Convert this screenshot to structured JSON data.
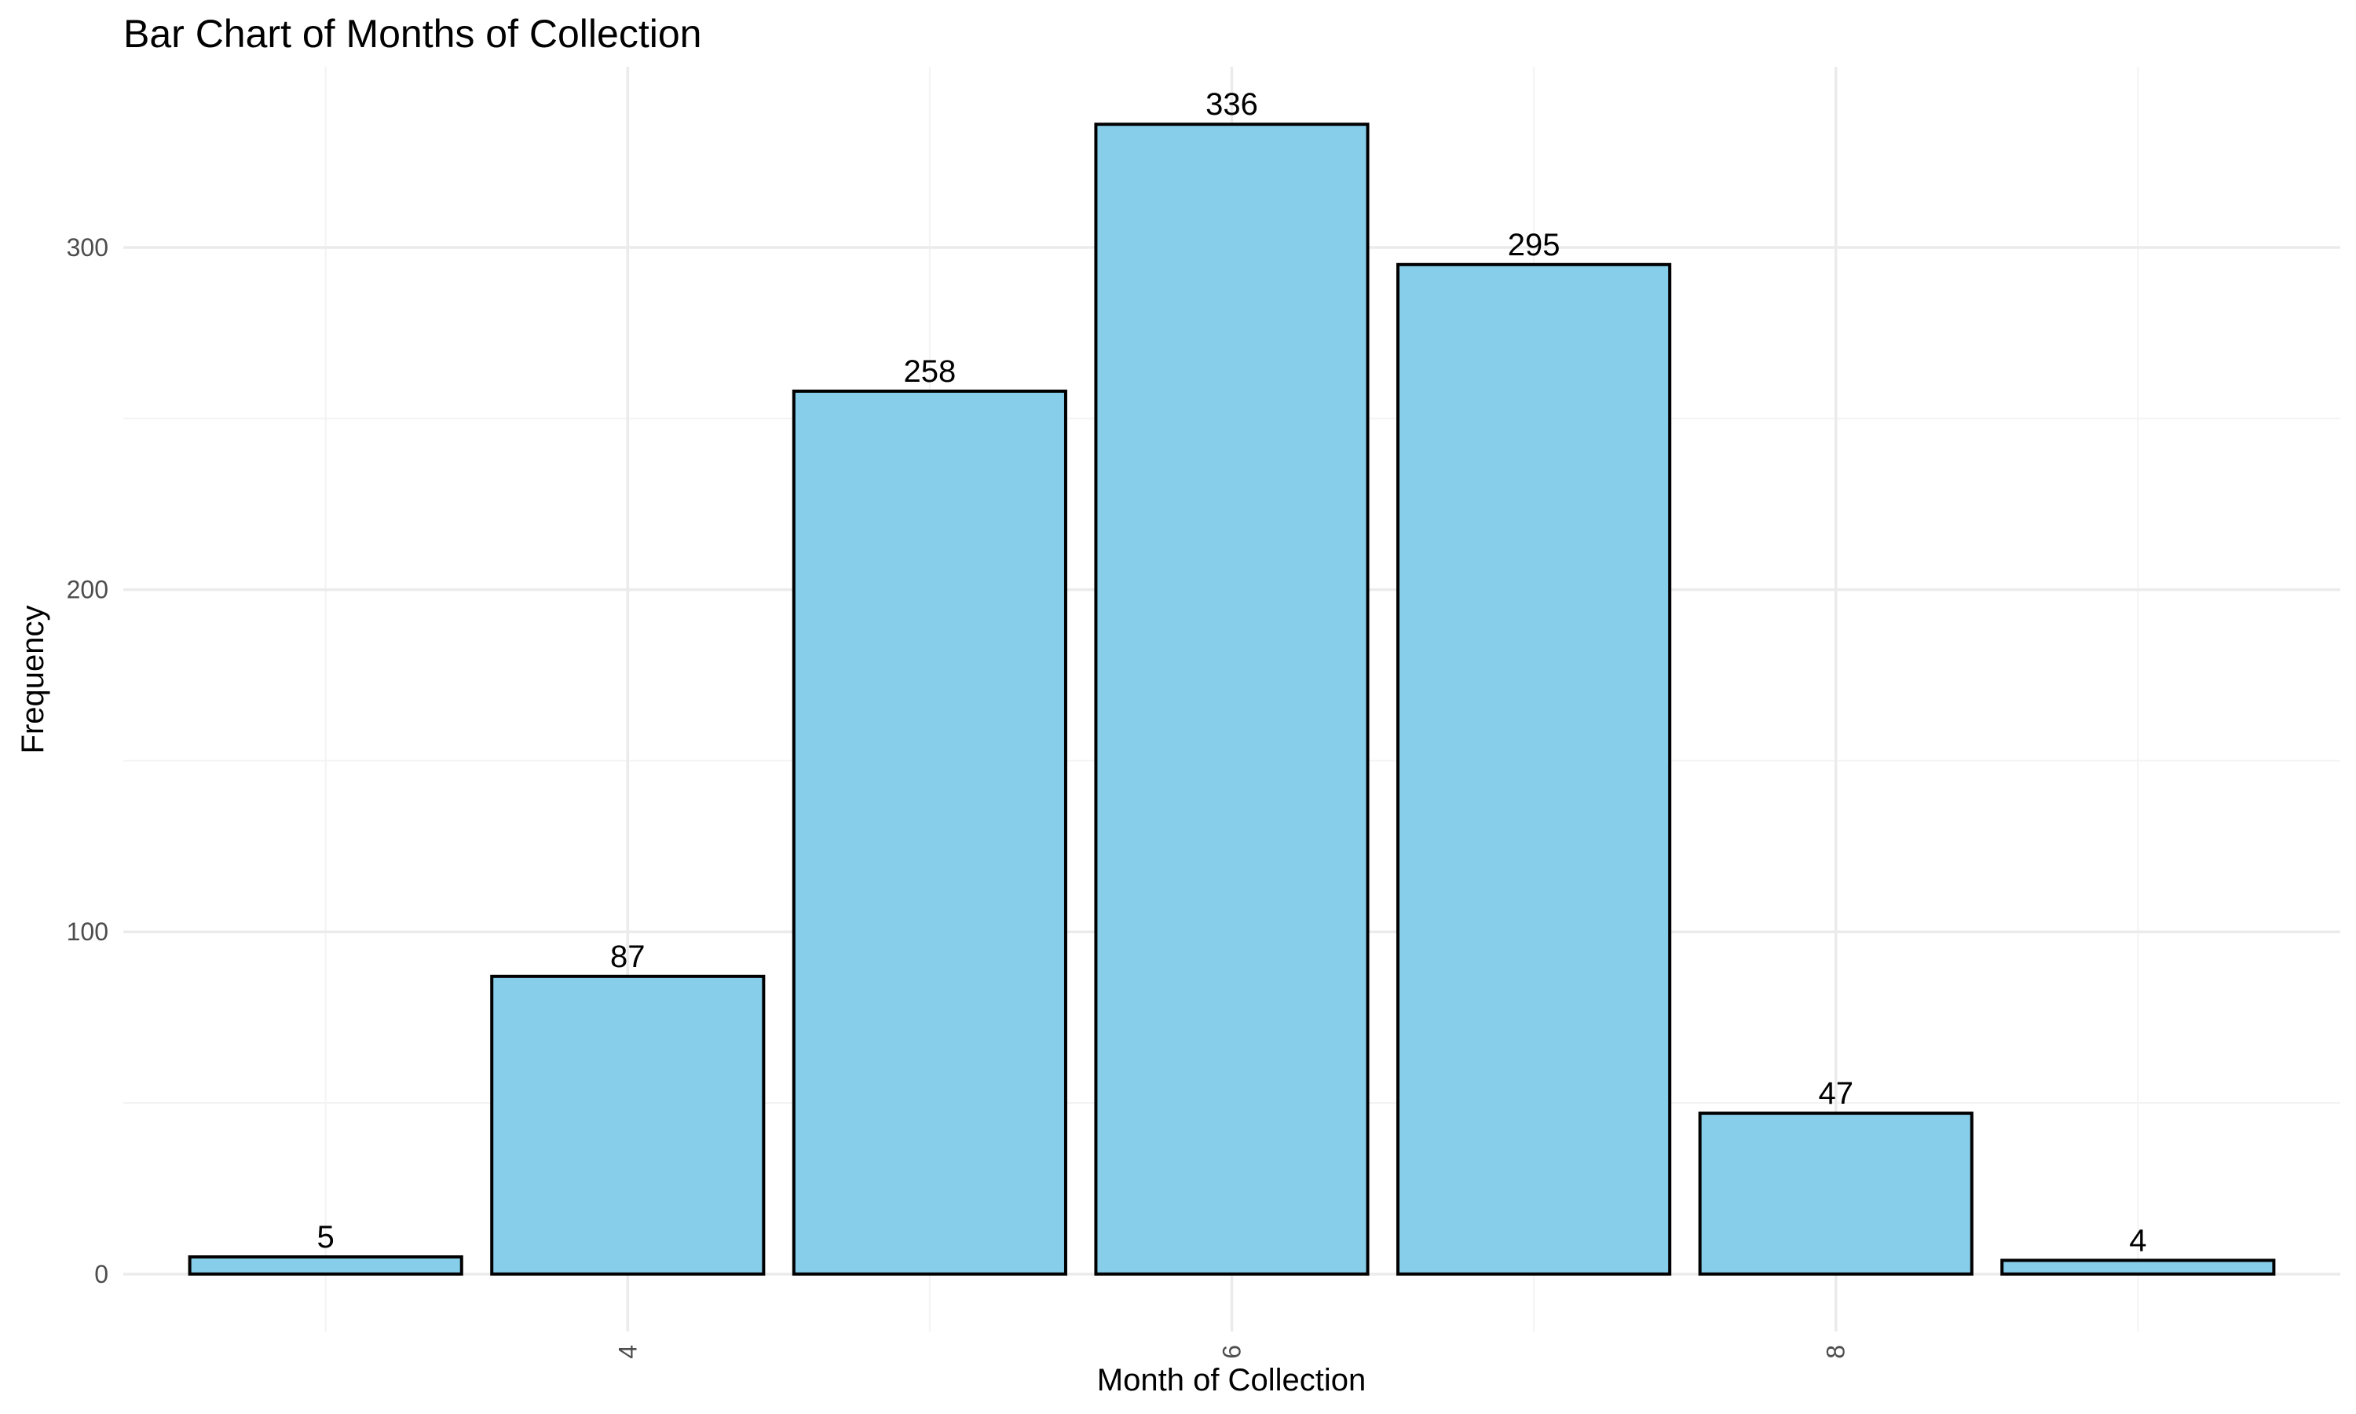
{
  "chart_data": {
    "type": "bar",
    "title": "Bar Chart of Months of Collection",
    "xlabel": "Month of Collection",
    "ylabel": "Frequency",
    "categories": [
      3,
      4,
      5,
      6,
      7,
      8,
      9
    ],
    "values": [
      5,
      87,
      258,
      336,
      295,
      47,
      4
    ],
    "data_labels": [
      "5",
      "87",
      "258",
      "336",
      "295",
      "47",
      "4"
    ],
    "x_ticks": [
      4,
      6,
      8
    ],
    "x_tick_labels": [
      "4",
      "6",
      "8"
    ],
    "y_ticks": [
      0,
      100,
      200,
      300
    ],
    "y_tick_labels": [
      "0",
      "100",
      "200",
      "300"
    ],
    "xlim": [
      2.33,
      9.67
    ],
    "ylim": [
      -16.8,
      352.8
    ],
    "grid": true,
    "bar_fill": "#87CEEB",
    "bar_outline": "#000000",
    "x_tick_label_rotation": "vertical"
  }
}
